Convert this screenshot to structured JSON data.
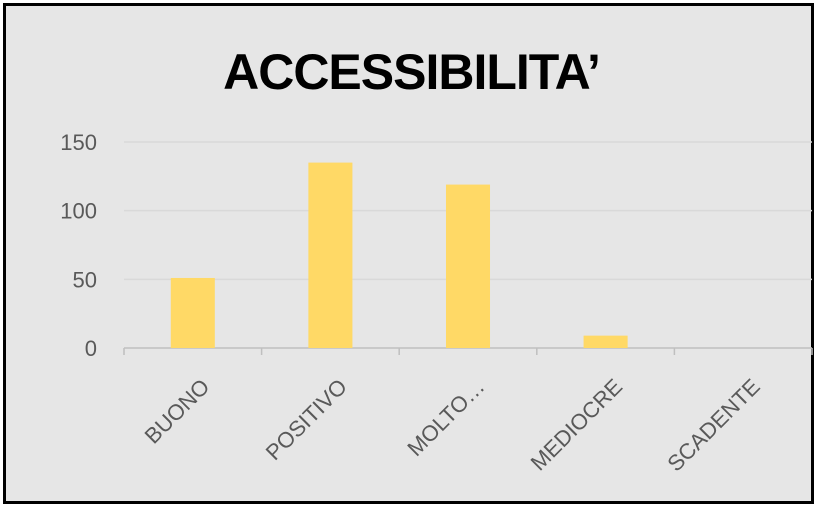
{
  "chart_data": {
    "type": "bar",
    "title": "ACCESSIBILITA’",
    "categories": [
      "BUONO",
      "POSITIVO",
      "MOLTO…",
      "MEDIOCRE",
      "SCADENTE"
    ],
    "values": [
      51,
      135,
      119,
      9,
      0
    ],
    "yticks": [
      "0",
      "50",
      "100",
      "150"
    ],
    "ylim": [
      0,
      150
    ],
    "xlabel": "",
    "ylabel": "",
    "grid": true,
    "legend": "none",
    "bar_color": "#ffd966",
    "grid_color": "#d9d9d9",
    "axis_color": "#bfbfbf",
    "background_color": "#e6e6e6"
  }
}
